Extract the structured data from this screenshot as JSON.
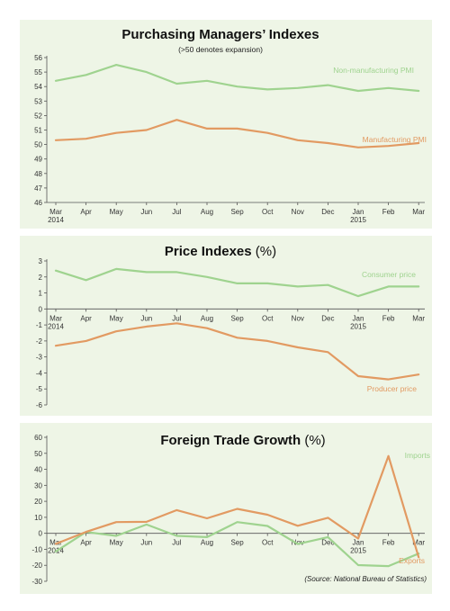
{
  "colors": {
    "panel": "#eef5e6",
    "background": "#ffffff",
    "green": "#9fd38f",
    "orange": "#e29a62",
    "axis": "#555555"
  },
  "months": [
    "Mar",
    "Apr",
    "May",
    "Jun",
    "Jul",
    "Aug",
    "Sep",
    "Oct",
    "Nov",
    "Dec",
    "Jan",
    "Feb",
    "Mar"
  ],
  "year_labels": [
    "2014",
    "",
    "",
    "",
    "",
    "",
    "",
    "",
    "",
    "",
    "2015",
    "",
    ""
  ],
  "source_label": "(Source: National Bureau of Statistics)",
  "chart_data": [
    {
      "type": "line",
      "title": "Purchasing Managers’ Indexes",
      "subtitle": "(>50 denotes expansion)",
      "yticks": [
        46,
        47,
        48,
        49,
        50,
        51,
        52,
        53,
        54,
        55,
        56
      ],
      "ylim": [
        46,
        56
      ],
      "series": [
        {
          "name": "Non-manufacturing PMI",
          "color": "#9fd38f",
          "values": [
            54.4,
            54.8,
            55.5,
            55.0,
            54.2,
            54.4,
            54.0,
            53.8,
            53.9,
            54.1,
            53.7,
            53.9,
            53.7
          ]
        },
        {
          "name": "Manufacturing PMI",
          "color": "#e29a62",
          "values": [
            50.3,
            50.4,
            50.8,
            51.0,
            51.7,
            51.1,
            51.1,
            50.8,
            50.3,
            50.1,
            49.8,
            49.9,
            50.1
          ]
        }
      ]
    },
    {
      "type": "line",
      "title": "Price Indexes",
      "title_unit": "(%)",
      "yticks": [
        3,
        2,
        1,
        0,
        -1,
        -2,
        -3,
        -4,
        -5,
        -6
      ],
      "ylim": [
        -6,
        3
      ],
      "series": [
        {
          "name": "Consumer price",
          "color": "#9fd38f",
          "values": [
            2.4,
            1.8,
            2.5,
            2.3,
            2.3,
            2.0,
            1.6,
            1.6,
            1.4,
            1.5,
            0.8,
            1.4,
            1.4
          ]
        },
        {
          "name": "Producer price",
          "color": "#e29a62",
          "values": [
            -2.3,
            -2.0,
            -1.4,
            -1.1,
            -0.9,
            -1.2,
            -1.8,
            -2.0,
            -2.4,
            -2.7,
            -4.2,
            -4.4,
            -4.1
          ]
        }
      ]
    },
    {
      "type": "line",
      "title": "Foreign Trade Growth",
      "title_unit": "(%)",
      "yticks": [
        60,
        50,
        40,
        30,
        20,
        10,
        0,
        -10,
        -20,
        -30
      ],
      "ylim": [
        -30,
        60
      ],
      "series": [
        {
          "name": "Imports",
          "color": "#9fd38f",
          "values": [
            -11.3,
            0.8,
            -1.6,
            5.5,
            -1.6,
            -2.4,
            7.0,
            4.6,
            -6.7,
            -2.4,
            -19.9,
            -20.5,
            -12.7
          ]
        },
        {
          "name": "Exports",
          "color": "#e29a62",
          "values": [
            -6.6,
            0.9,
            7.0,
            7.2,
            14.5,
            9.4,
            15.3,
            11.6,
            4.7,
            9.7,
            -3.3,
            48.3,
            -15.0
          ]
        }
      ]
    }
  ]
}
